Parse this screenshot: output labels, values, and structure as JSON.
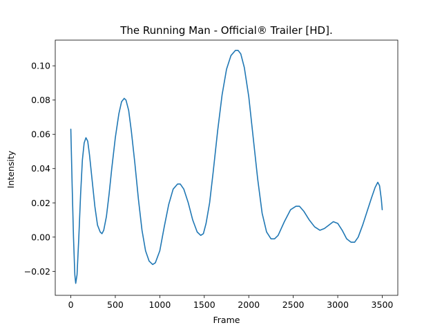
{
  "chart_data": {
    "type": "line",
    "title": "The Running Man - Official® Trailer [HD].",
    "xlabel": "Frame",
    "ylabel": "Intensity",
    "xlim": [
      -175,
      3675
    ],
    "ylim": [
      -0.034,
      0.115
    ],
    "xticks": [
      0,
      500,
      1000,
      1500,
      2000,
      2500,
      3000,
      3500
    ],
    "yticks": [
      -0.02,
      0.0,
      0.02,
      0.04,
      0.06,
      0.08,
      0.1
    ],
    "ytick_labels": [
      "−0.02",
      "0.00",
      "0.02",
      "0.04",
      "0.06",
      "0.08",
      "0.10"
    ],
    "grid": false,
    "series": [
      {
        "color": "#1f77b4",
        "points": [
          [
            0,
            0.063
          ],
          [
            15,
            0.03
          ],
          [
            30,
            0.0
          ],
          [
            45,
            -0.022
          ],
          [
            55,
            -0.027
          ],
          [
            70,
            -0.022
          ],
          [
            90,
            0.0
          ],
          [
            110,
            0.025
          ],
          [
            130,
            0.045
          ],
          [
            150,
            0.055
          ],
          [
            170,
            0.058
          ],
          [
            190,
            0.056
          ],
          [
            210,
            0.048
          ],
          [
            240,
            0.033
          ],
          [
            270,
            0.018
          ],
          [
            300,
            0.007
          ],
          [
            330,
            0.003
          ],
          [
            350,
            0.002
          ],
          [
            370,
            0.004
          ],
          [
            400,
            0.012
          ],
          [
            430,
            0.025
          ],
          [
            460,
            0.04
          ],
          [
            500,
            0.058
          ],
          [
            540,
            0.072
          ],
          [
            570,
            0.079
          ],
          [
            600,
            0.081
          ],
          [
            620,
            0.08
          ],
          [
            650,
            0.074
          ],
          [
            680,
            0.062
          ],
          [
            720,
            0.043
          ],
          [
            760,
            0.022
          ],
          [
            800,
            0.004
          ],
          [
            840,
            -0.008
          ],
          [
            880,
            -0.014
          ],
          [
            920,
            -0.016
          ],
          [
            950,
            -0.015
          ],
          [
            1000,
            -0.008
          ],
          [
            1050,
            0.006
          ],
          [
            1100,
            0.019
          ],
          [
            1150,
            0.028
          ],
          [
            1200,
            0.031
          ],
          [
            1230,
            0.031
          ],
          [
            1270,
            0.028
          ],
          [
            1320,
            0.02
          ],
          [
            1370,
            0.01
          ],
          [
            1420,
            0.003
          ],
          [
            1460,
            0.001
          ],
          [
            1490,
            0.002
          ],
          [
            1520,
            0.008
          ],
          [
            1560,
            0.02
          ],
          [
            1600,
            0.038
          ],
          [
            1650,
            0.062
          ],
          [
            1700,
            0.083
          ],
          [
            1750,
            0.098
          ],
          [
            1800,
            0.106
          ],
          [
            1850,
            0.109
          ],
          [
            1880,
            0.109
          ],
          [
            1910,
            0.107
          ],
          [
            1950,
            0.099
          ],
          [
            2000,
            0.082
          ],
          [
            2050,
            0.058
          ],
          [
            2100,
            0.034
          ],
          [
            2150,
            0.014
          ],
          [
            2200,
            0.003
          ],
          [
            2250,
            -0.001
          ],
          [
            2290,
            -0.001
          ],
          [
            2330,
            0.001
          ],
          [
            2400,
            0.009
          ],
          [
            2470,
            0.016
          ],
          [
            2530,
            0.018
          ],
          [
            2570,
            0.018
          ],
          [
            2620,
            0.015
          ],
          [
            2680,
            0.01
          ],
          [
            2740,
            0.006
          ],
          [
            2800,
            0.004
          ],
          [
            2850,
            0.005
          ],
          [
            2900,
            0.007
          ],
          [
            2950,
            0.009
          ],
          [
            3000,
            0.008
          ],
          [
            3050,
            0.004
          ],
          [
            3100,
            -0.001
          ],
          [
            3150,
            -0.003
          ],
          [
            3190,
            -0.003
          ],
          [
            3230,
            0.0
          ],
          [
            3280,
            0.007
          ],
          [
            3330,
            0.015
          ],
          [
            3380,
            0.023
          ],
          [
            3420,
            0.029
          ],
          [
            3450,
            0.032
          ],
          [
            3470,
            0.03
          ],
          [
            3490,
            0.022
          ],
          [
            3500,
            0.016
          ]
        ]
      }
    ]
  }
}
